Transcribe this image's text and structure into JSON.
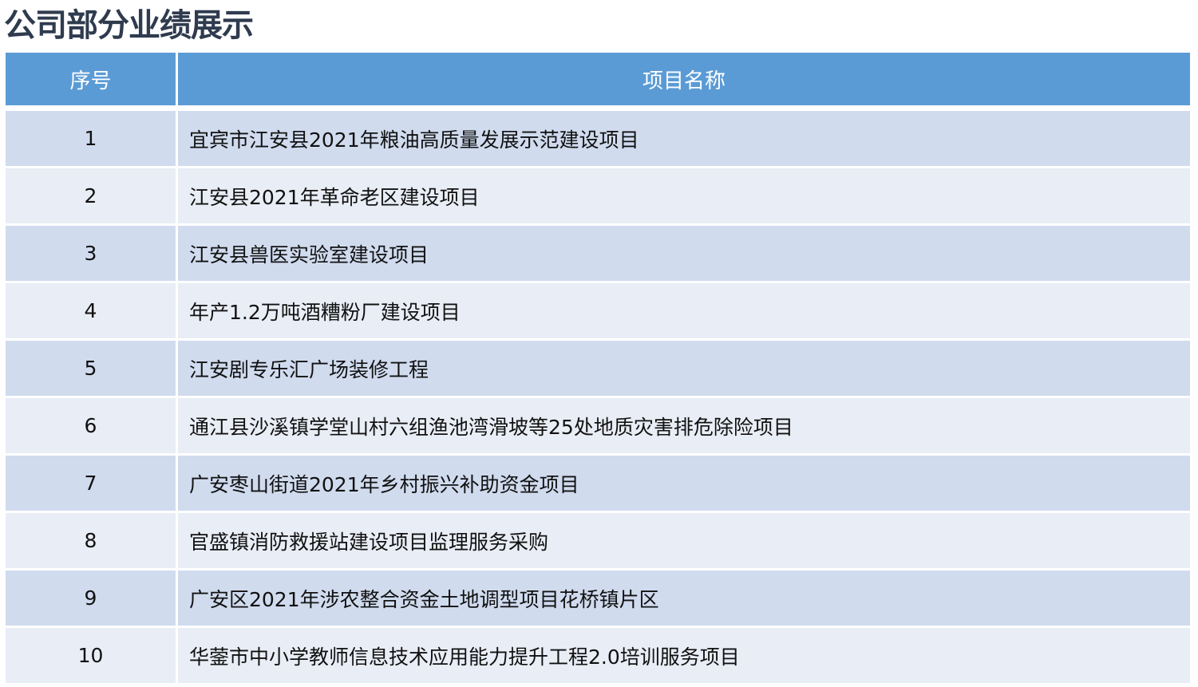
{
  "title": "公司部分业绩展示",
  "table": {
    "headers": [
      "序号",
      "项目名称"
    ],
    "rows": [
      [
        "1",
        "宜宾市江安县2021年粮油高质量发展示范建设项目"
      ],
      [
        "2",
        "江安县2021年革命老区建设项目"
      ],
      [
        "3",
        "江安县兽医实验室建设项目"
      ],
      [
        "4",
        "年产1.2万吨酒糟粉厂建设项目"
      ],
      [
        "5",
        "江安剧专乐汇广场装修工程"
      ],
      [
        "6",
        "通江县沙溪镇学堂山村六组渔池湾滑坡等25处地质灾害排危除险项目"
      ],
      [
        "7",
        "广安枣山街道2021年乡村振兴补助资金项目"
      ],
      [
        "8",
        "官盛镇消防救援站建设项目监理服务采购"
      ],
      [
        "9",
        "广安区2021年涉农整合资金土地调型项目花桥镇片区"
      ],
      [
        "10",
        "华蓥市中小学教师信息技术应用能力提升工程2.0培训服务项目"
      ]
    ]
  },
  "colors": {
    "header": "#5b9bd5",
    "row_odd": "#d0dbee",
    "row_even": "#e9edf5",
    "title": "#2f3b4e"
  }
}
